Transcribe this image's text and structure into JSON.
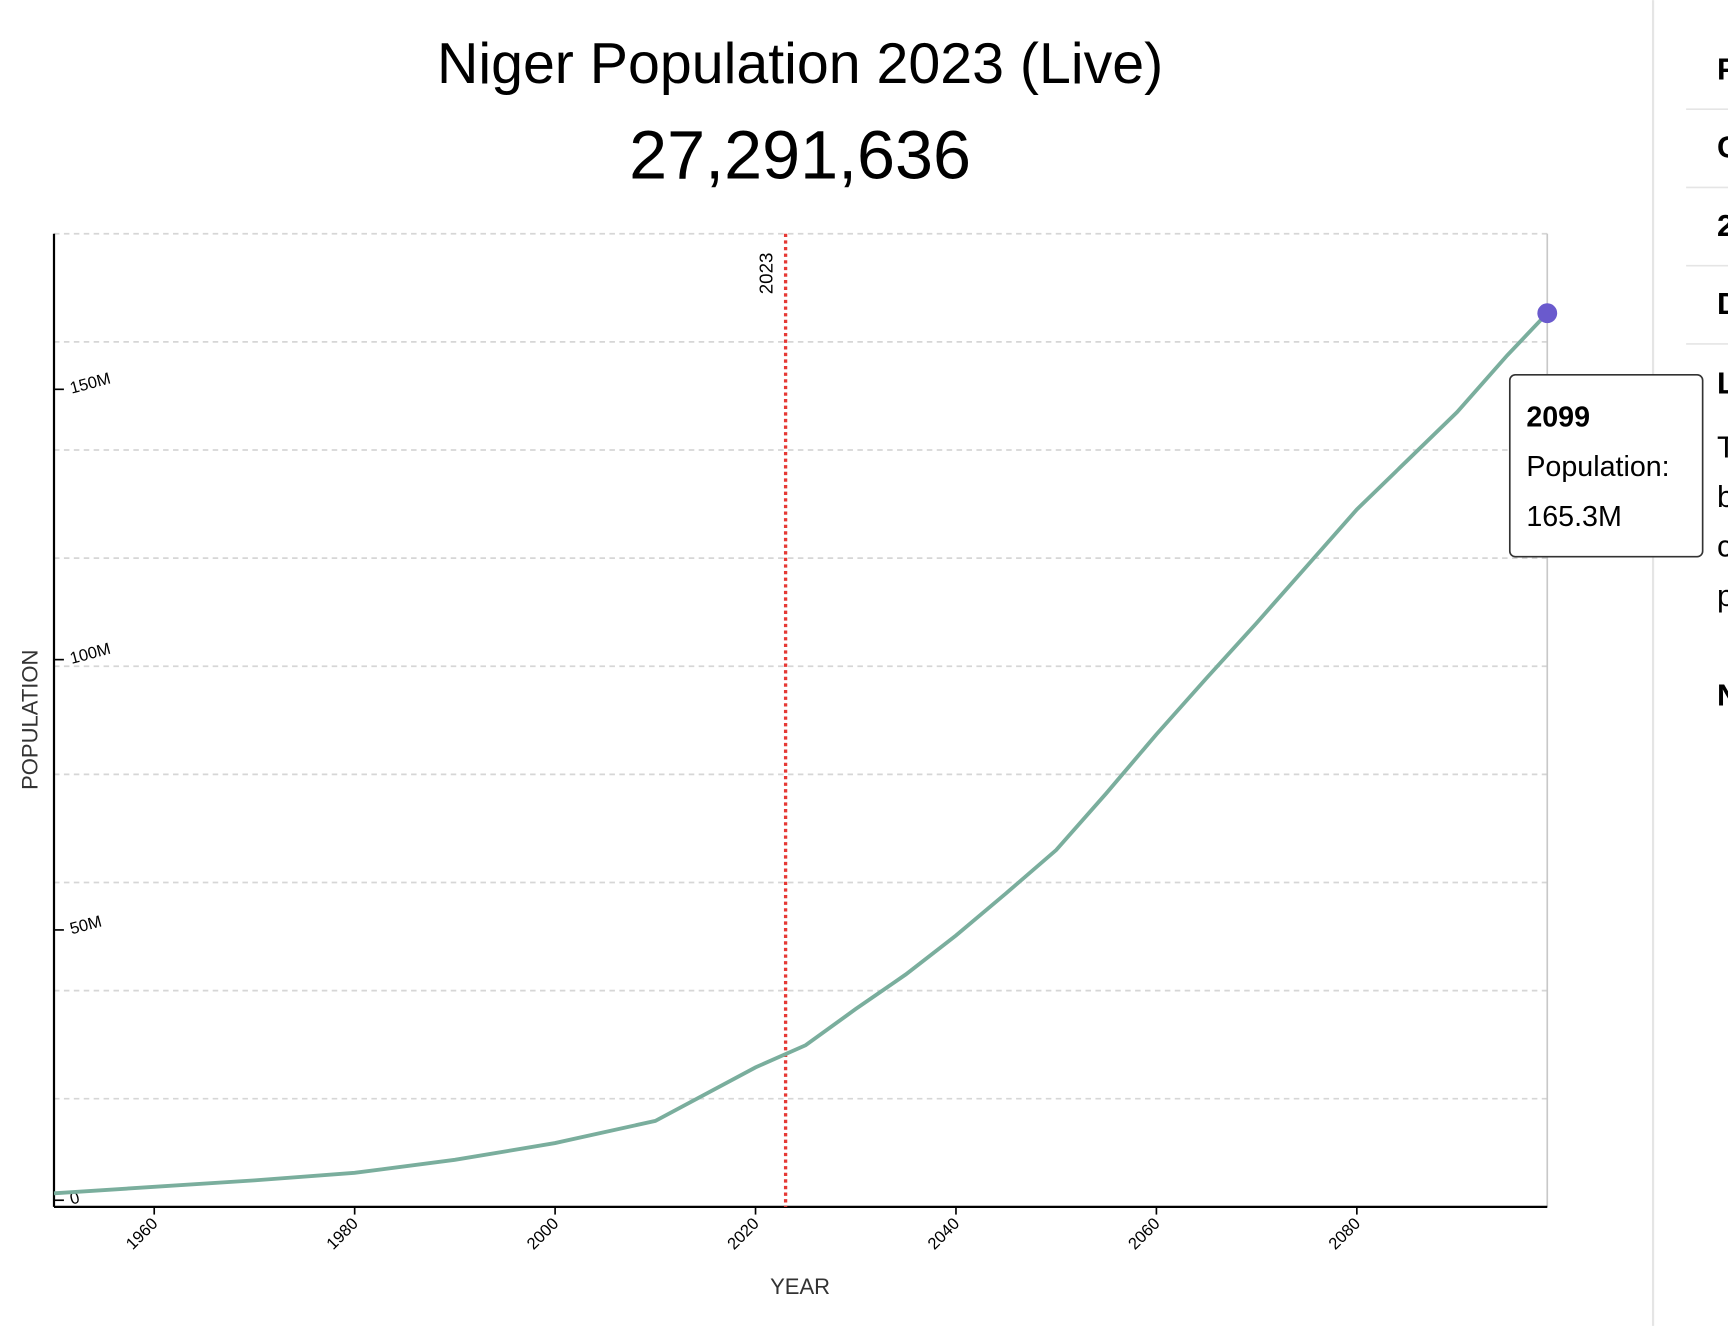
{
  "chart_data": {
    "type": "line",
    "title": "Niger Population 2023 (Live)",
    "subtitle": "27,291,636",
    "xlabel": "YEAR",
    "ylabel": "POPULATION",
    "x": [
      1950,
      1960,
      1970,
      1980,
      1990,
      2000,
      2010,
      2020,
      2025,
      2030,
      2035,
      2040,
      2045,
      2050,
      2055,
      2060,
      2065,
      2070,
      2075,
      2080,
      2085,
      2090,
      2095,
      2099
    ],
    "series": [
      {
        "name": "Population",
        "color": "#7aae9d",
        "values": [
          2500000,
          3700000,
          4900000,
          6300000,
          8700000,
          11800000,
          15900000,
          25800000,
          29900000,
          36600000,
          43000000,
          50200000,
          58000000,
          66000000,
          76500000,
          87400000,
          97800000,
          108000000,
          118500000,
          129000000,
          138000000,
          147000000,
          157500000,
          165300000
        ]
      }
    ],
    "xlim": [
      1950,
      2099
    ],
    "ylim": [
      0,
      180000000
    ],
    "xticks": [
      1960,
      1980,
      2000,
      2020,
      2040,
      2060,
      2080
    ],
    "yticks": [
      {
        "value": 0,
        "label": "0"
      },
      {
        "value": 50000000,
        "label": "50M"
      },
      {
        "value": 100000000,
        "label": "100M"
      },
      {
        "value": 150000000,
        "label": "150M"
      }
    ],
    "ygrid": [
      0,
      20000000,
      40000000,
      60000000,
      80000000,
      100000000,
      120000000,
      140000000,
      160000000,
      180000000
    ],
    "grid": true,
    "marker": {
      "x": 2023,
      "color": "#e53935"
    },
    "point_color": "#6a5acd",
    "tooltip": {
      "label": "Population:",
      "value_label": "165.3M"
    }
  },
  "sidebar": {
    "items": [
      "P",
      "C",
      "2",
      "D",
      "L"
    ],
    "paragraph": [
      "T",
      "b",
      "c",
      "p"
    ],
    "heading": "N"
  }
}
